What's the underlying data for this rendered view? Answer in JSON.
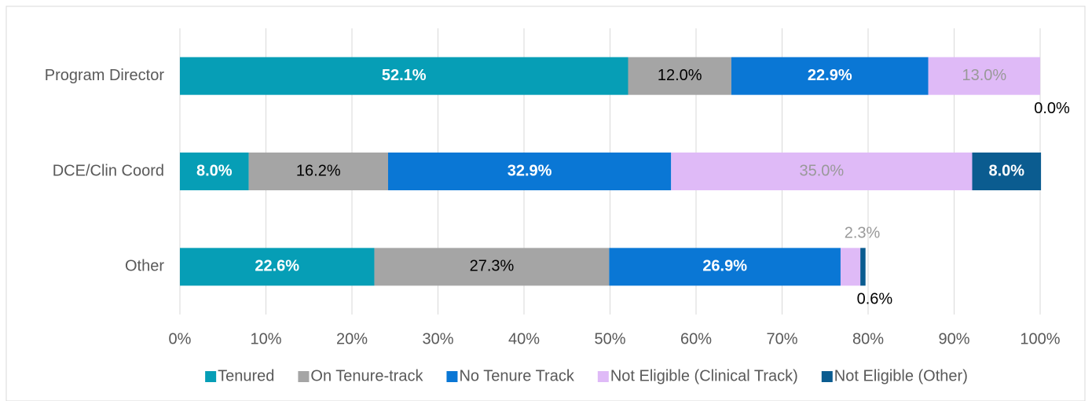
{
  "chart_data": {
    "type": "stacked-bar-horizontal",
    "categories": [
      "Program Director",
      "DCE/Clin Coord",
      "Other"
    ],
    "series": [
      {
        "name": "Tenured",
        "color": "#069eb6",
        "values": [
          52.1,
          8.0,
          22.6
        ],
        "value_labels": [
          "52.1%",
          "8.0%",
          "22.6%"
        ]
      },
      {
        "name": "On Tenure-track",
        "color": "#a5a5a5",
        "values": [
          12.0,
          16.2,
          27.3
        ],
        "value_labels": [
          "12.0%",
          "16.2%",
          "27.3%"
        ]
      },
      {
        "name": "No Tenure Track",
        "color": "#0a77d5",
        "values": [
          22.9,
          32.9,
          26.9
        ],
        "value_labels": [
          "22.9%",
          "32.9%",
          "26.9%"
        ]
      },
      {
        "name": "Not Eligible (Clinical Track)",
        "color": "#dfbaf7",
        "values": [
          13.0,
          35.0,
          2.3
        ],
        "value_labels": [
          "13.0%",
          "35.0%",
          "2.3%"
        ]
      },
      {
        "name": "Not Eligible (Other)",
        "color": "#0b5c90",
        "values": [
          0.0,
          8.0,
          0.6
        ],
        "value_labels": [
          "0.0%",
          "8.0%",
          "0.6%"
        ]
      }
    ],
    "xlim": [
      0,
      100
    ],
    "xticks": [
      {
        "value": 0,
        "label": "0%"
      },
      {
        "value": 10,
        "label": "10%"
      },
      {
        "value": 20,
        "label": "20%"
      },
      {
        "value": 30,
        "label": "30%"
      },
      {
        "value": 40,
        "label": "40%"
      },
      {
        "value": 50,
        "label": "50%"
      },
      {
        "value": 60,
        "label": "60%"
      },
      {
        "value": 70,
        "label": "70%"
      },
      {
        "value": 80,
        "label": "80%"
      },
      {
        "value": 90,
        "label": "90%"
      },
      {
        "value": 100,
        "label": "100%"
      }
    ],
    "grid": true,
    "legend": "bottom"
  }
}
